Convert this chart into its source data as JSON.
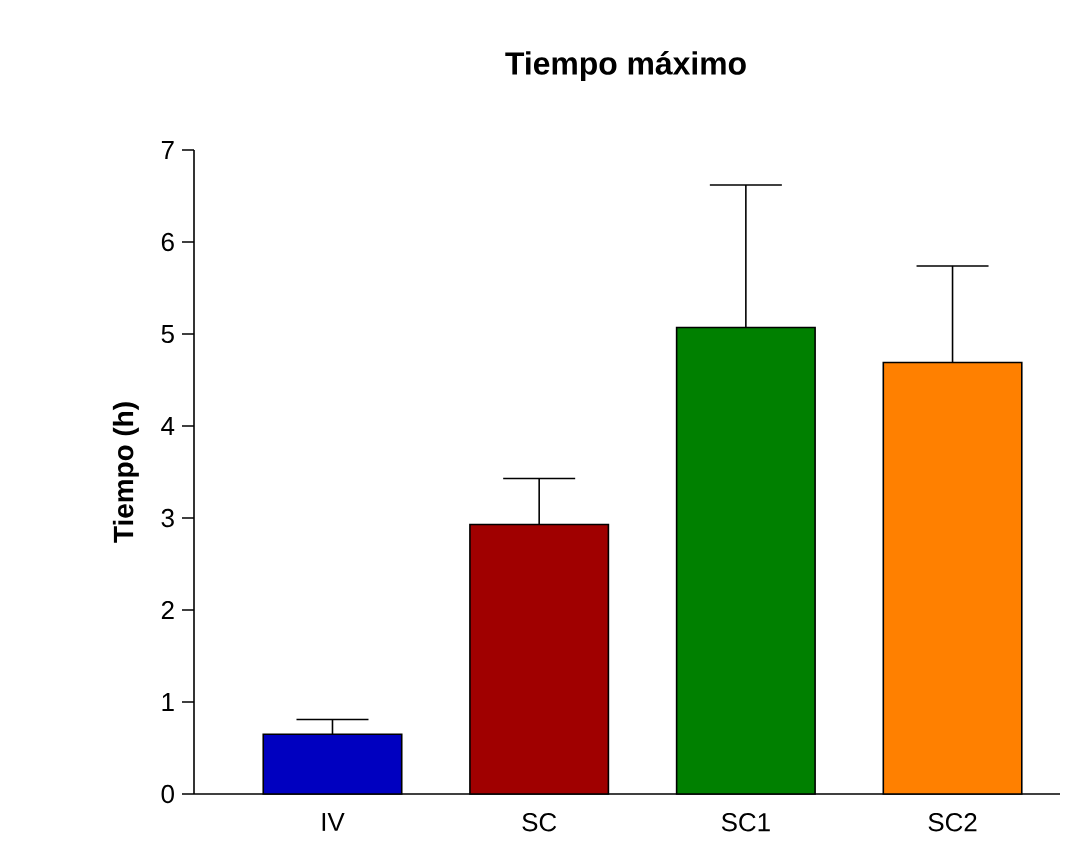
{
  "chart_data": {
    "type": "bar",
    "title": "Tiempo máximo",
    "ylabel": "Tiempo (h)",
    "categories": [
      "IV",
      "SC",
      "SC1",
      "SC2"
    ],
    "values": [
      0.65,
      2.93,
      5.07,
      4.69
    ],
    "colors": [
      "#0000c0",
      "#a00000",
      "#008000",
      "#ff8000"
    ],
    "errors": [
      [
        0.65,
        0.81
      ],
      [
        2.93,
        3.43
      ],
      [
        5.07,
        6.62
      ],
      [
        4.69,
        5.74
      ]
    ],
    "ylim": [
      0,
      7
    ],
    "yticks": [
      0,
      1,
      2,
      3,
      4,
      5,
      6,
      7
    ],
    "grid": false
  }
}
